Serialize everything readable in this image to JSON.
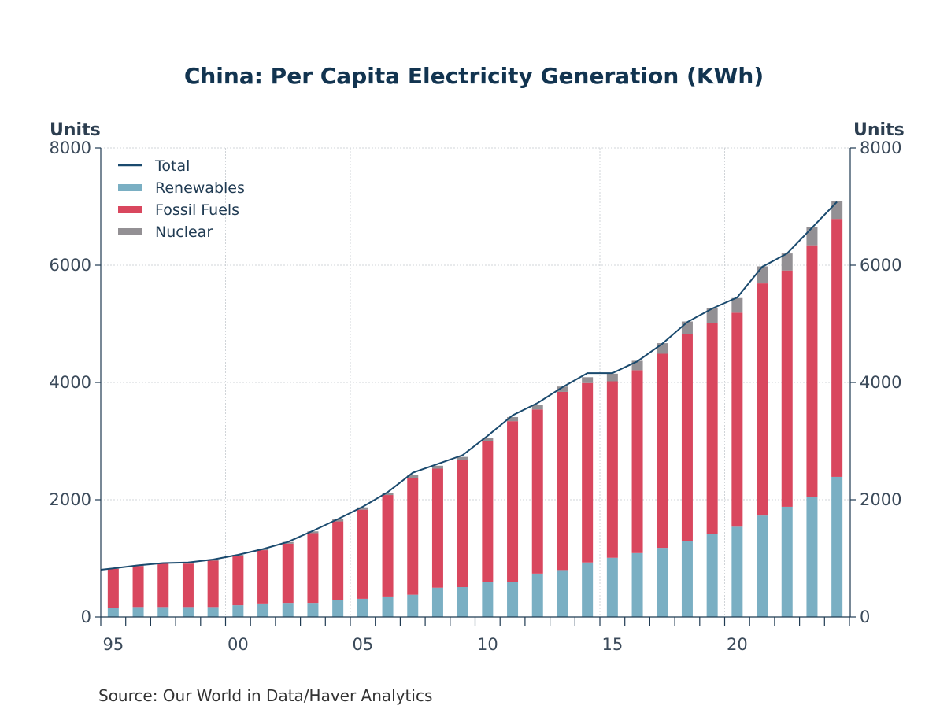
{
  "chart_data": {
    "type": "bar",
    "title": "China: Per Capita Electricity Generation (KWh)",
    "left_axis_label": "Units",
    "right_axis_label": "Units",
    "ylim": [
      0,
      8000
    ],
    "yticks": [
      0,
      2000,
      4000,
      6000,
      8000
    ],
    "ytick_labels": [
      "0",
      "2000",
      "4000",
      "6000",
      "8000"
    ],
    "xtick_labels": [
      "95",
      "00",
      "05",
      "10",
      "15",
      "20"
    ],
    "xtick_years": [
      1995,
      2000,
      2005,
      2010,
      2015,
      2020
    ],
    "x": [
      1995,
      1996,
      1997,
      1998,
      1999,
      2000,
      2001,
      2002,
      2003,
      2004,
      2005,
      2006,
      2007,
      2008,
      2009,
      2010,
      2011,
      2012,
      2013,
      2014,
      2015,
      2016,
      2017,
      2018,
      2019,
      2020,
      2021,
      2022,
      2023,
      2024
    ],
    "stacked": true,
    "grid": true,
    "legend_position": "top-left",
    "series": [
      {
        "name": "Renewables",
        "kind": "bar",
        "color": "#7aafc3",
        "values": [
          160,
          170,
          170,
          170,
          170,
          200,
          230,
          240,
          240,
          290,
          310,
          350,
          380,
          500,
          510,
          600,
          600,
          740,
          800,
          930,
          1010,
          1090,
          1180,
          1290,
          1420,
          1540,
          1730,
          1880,
          2040,
          2390
        ]
      },
      {
        "name": "Fossil Fuels",
        "kind": "bar",
        "color": "#d9475e",
        "values": [
          660,
          700,
          740,
          740,
          790,
          840,
          910,
          1010,
          1190,
          1340,
          1520,
          1730,
          1990,
          2030,
          2170,
          2400,
          2740,
          2800,
          3040,
          3060,
          3010,
          3120,
          3310,
          3540,
          3600,
          3650,
          3960,
          4030,
          4300,
          4400
        ]
      },
      {
        "name": "Nuclear",
        "kind": "bar",
        "color": "#939094",
        "values": [
          10,
          10,
          10,
          10,
          10,
          20,
          20,
          30,
          30,
          40,
          40,
          40,
          50,
          50,
          50,
          60,
          70,
          80,
          90,
          100,
          130,
          160,
          180,
          210,
          250,
          250,
          290,
          290,
          310,
          300
        ]
      },
      {
        "name": "Total",
        "kind": "line",
        "color": "#1a4a6e",
        "values": [
          830,
          880,
          920,
          930,
          980,
          1060,
          1160,
          1280,
          1470,
          1670,
          1880,
          2130,
          2460,
          2610,
          2760,
          3090,
          3440,
          3650,
          3920,
          4160,
          4160,
          4360,
          4660,
          5030,
          5260,
          5450,
          5970,
          6200,
          6640,
          7080
        ]
      }
    ],
    "legend": [
      "Total",
      "Renewables",
      "Fossil Fuels",
      "Nuclear"
    ],
    "source": "Source:  Our World in Data/Haver Analytics"
  }
}
